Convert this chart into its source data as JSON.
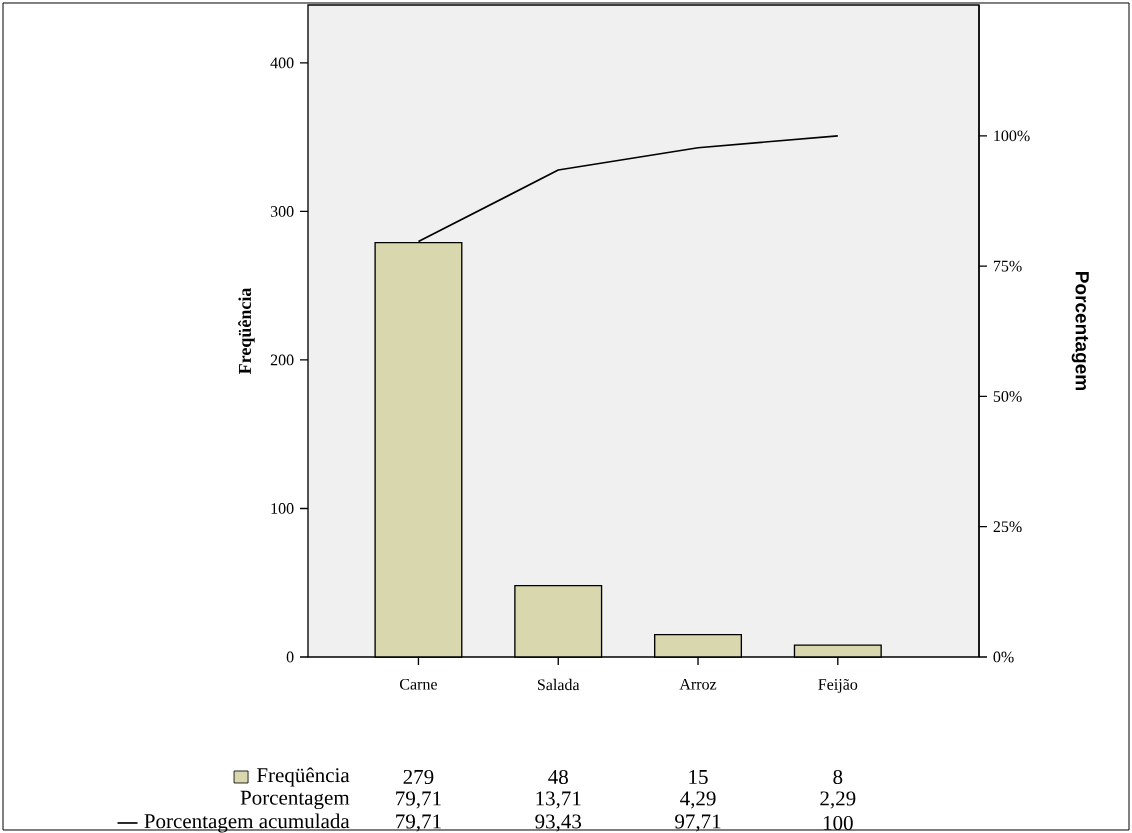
{
  "chart_data": {
    "type": "bar",
    "ylabel": "Freqüência",
    "y2label": "Porcentagem",
    "categories": [
      "Carne",
      "Salada",
      "Arroz",
      "Feijão"
    ],
    "series": [
      {
        "name": "Freqüência",
        "color": "#d9d7ad",
        "values": [
          279,
          48,
          15,
          8
        ],
        "value_labels": [
          "279",
          "48",
          "15",
          "8"
        ]
      },
      {
        "name": "Porcentagem acumulada",
        "type": "line",
        "axis": "y2",
        "color": "#000000",
        "values": [
          79.71,
          93.43,
          97.71,
          100
        ],
        "value_labels": [
          "79,71",
          "93,43",
          "97,71",
          "100"
        ]
      }
    ],
    "legend": "bottom left",
    "annotations": [
      "Porcentagem",
      "79,71",
      "13,71",
      "4,29",
      "2,29"
    ],
    "ylim": [
      0,
      439
    ],
    "yticks": [
      0,
      100,
      200,
      300,
      400
    ],
    "y2lim": [
      0,
      125.1
    ],
    "y2ticks": [
      {
        "value": 0,
        "label": "0%"
      },
      {
        "value": 25,
        "label": "25%"
      },
      {
        "value": 50,
        "label": "50%"
      },
      {
        "value": 75,
        "label": "75%"
      },
      {
        "value": 100,
        "label": "100%"
      }
    ]
  }
}
